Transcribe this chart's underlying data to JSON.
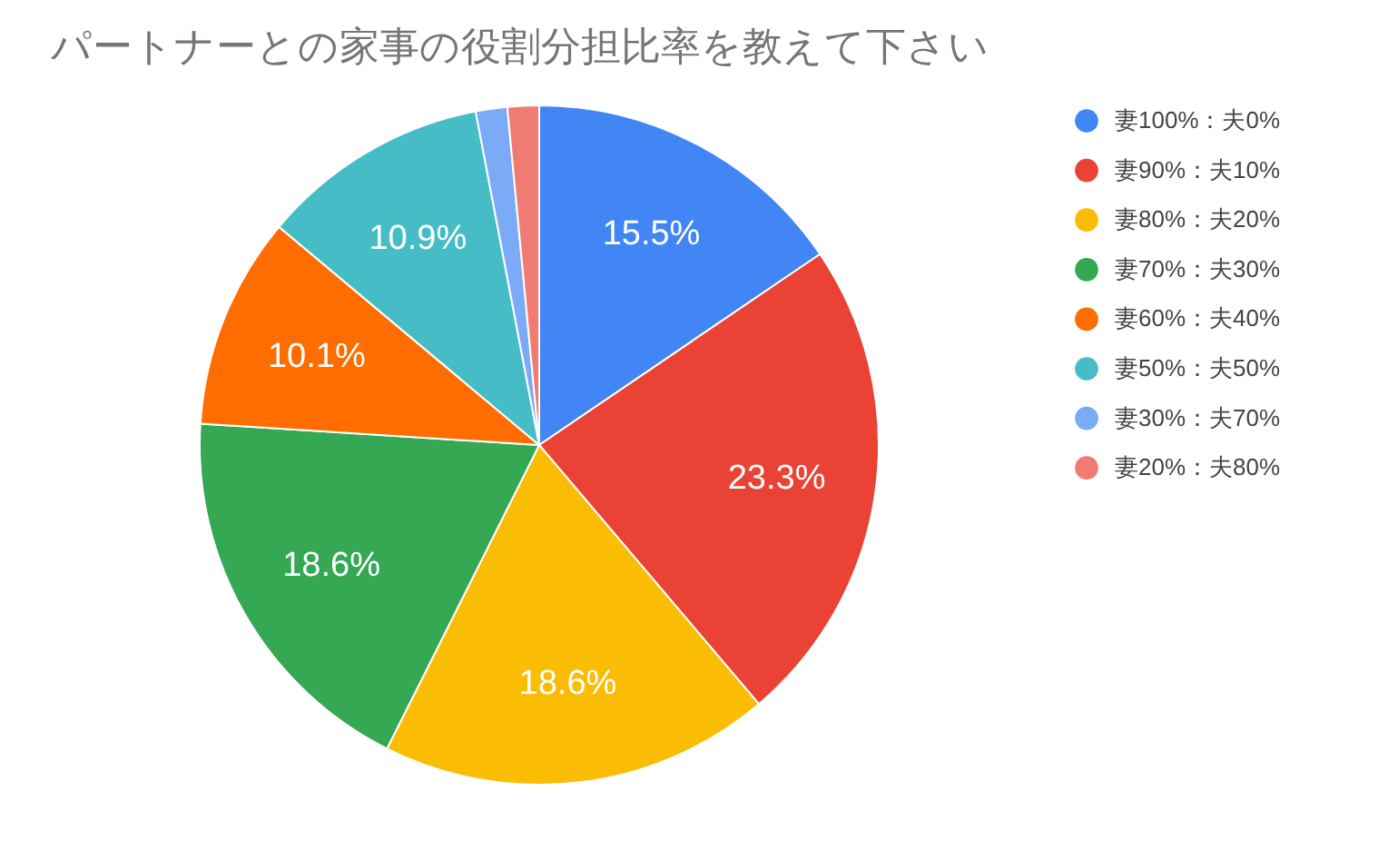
{
  "chart_data": {
    "type": "pie",
    "title": "パートナーとの家事の役割分担比率を教えて下さい",
    "categories": [
      "妻100%：夫0%",
      "妻90%：夫10%",
      "妻80%：夫20%",
      "妻70%：夫30%",
      "妻60%：夫40%",
      "妻50%：夫50%",
      "妻30%：夫70%",
      "妻20%：夫80%"
    ],
    "values": [
      15.5,
      23.3,
      18.6,
      18.6,
      10.1,
      10.9,
      1.5,
      1.5
    ],
    "colors": [
      "#4285f4",
      "#ea4335",
      "#fbbc04",
      "#34a853",
      "#ff6d01",
      "#46bdc6",
      "#7baaf7",
      "#f07b72"
    ],
    "value_labels": [
      "15.5%",
      "23.3%",
      "18.6%",
      "18.6%",
      "10.1%",
      "10.9%",
      null,
      null
    ],
    "legend": "top right"
  }
}
